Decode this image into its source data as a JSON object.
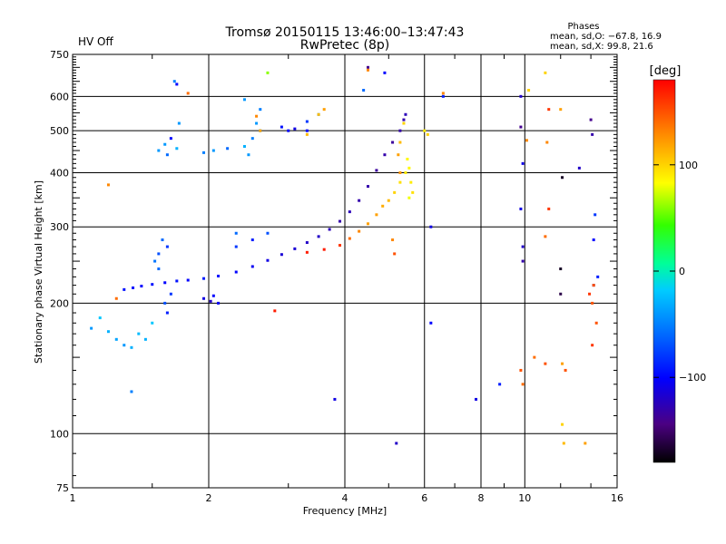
{
  "chart_data": {
    "type": "scatter",
    "title": "Tromsø 20150115 13:46:00–13:47:43",
    "subtitle": "RwPretec (8p)",
    "status_text": "HV Off",
    "status_color": "#cc0000",
    "phase_info": {
      "heading": "Phases",
      "line_o": "mean, sd,O: −67.8, 16.9",
      "line_x": "mean, sd,X:  99.8, 21.6"
    },
    "xlabel": "Frequency [MHz]",
    "ylabel": "Stationary phase Virtual Height [km]",
    "x_scale": "log",
    "y_scale": "log",
    "xlim": [
      1,
      16
    ],
    "ylim": [
      75,
      750
    ],
    "x_ticks": [
      1,
      2,
      4,
      6,
      8,
      10,
      16
    ],
    "x_tick_labels": [
      "1",
      "2",
      "4",
      "6",
      "8",
      "10",
      "16"
    ],
    "y_ticks": [
      75,
      100,
      200,
      300,
      400,
      500,
      600,
      750
    ],
    "y_tick_labels": [
      "75",
      "100",
      "200",
      "300",
      "400",
      "500",
      "600",
      "750"
    ],
    "grid": true,
    "colorbar": {
      "label": "[deg]",
      "range": [
        -180,
        180
      ],
      "ticks": [
        100,
        0,
        -100
      ],
      "tick_labels": [
        "100",
        "0",
        "−100"
      ]
    },
    "series": [
      {
        "mode": "O",
        "points": [
          [
            1.3,
            215,
            -95
          ],
          [
            1.36,
            217,
            -95
          ],
          [
            1.42,
            219,
            -100
          ],
          [
            1.5,
            221,
            -95
          ],
          [
            1.6,
            223,
            -100
          ],
          [
            1.7,
            225,
            -95
          ],
          [
            1.8,
            226,
            -100
          ],
          [
            1.95,
            228,
            -90
          ],
          [
            2.1,
            231,
            -95
          ],
          [
            2.3,
            236,
            -100
          ],
          [
            2.5,
            243,
            -105
          ],
          [
            2.7,
            251,
            -110
          ],
          [
            2.9,
            259,
            -115
          ],
          [
            3.1,
            267,
            -115
          ],
          [
            3.3,
            276,
            -120
          ],
          [
            3.5,
            285,
            -120
          ],
          [
            3.7,
            296,
            -125
          ],
          [
            3.9,
            309,
            -130
          ],
          [
            4.1,
            325,
            -125
          ],
          [
            4.3,
            345,
            -130
          ],
          [
            4.5,
            372,
            -130
          ],
          [
            4.7,
            405,
            -135
          ],
          [
            4.9,
            440,
            -130
          ],
          [
            5.1,
            470,
            -135
          ],
          [
            5.3,
            500,
            -130
          ],
          [
            5.4,
            530,
            -130
          ],
          [
            5.45,
            545,
            -125
          ],
          [
            1.55,
            240,
            -60
          ],
          [
            1.55,
            260,
            -70
          ],
          [
            1.58,
            280,
            -60
          ],
          [
            1.62,
            270,
            -80
          ],
          [
            1.52,
            250,
            -55
          ],
          [
            1.6,
            200,
            -70
          ],
          [
            1.62,
            190,
            -90
          ],
          [
            1.65,
            210,
            -80
          ],
          [
            1.55,
            450,
            -40
          ],
          [
            1.6,
            465,
            -40
          ],
          [
            1.62,
            440,
            -60
          ],
          [
            1.65,
            480,
            -100
          ],
          [
            1.7,
            455,
            -30
          ],
          [
            1.95,
            445,
            -50
          ],
          [
            2.05,
            450,
            -40
          ],
          [
            2.2,
            455,
            -60
          ],
          [
            2.4,
            460,
            -30
          ],
          [
            2.45,
            440,
            -40
          ],
          [
            2.5,
            480,
            -50
          ],
          [
            2.55,
            520,
            -40
          ],
          [
            2.6,
            500,
            -30
          ],
          [
            2.9,
            510,
            -95
          ],
          [
            3.0,
            500,
            -100
          ],
          [
            3.1,
            505,
            -110
          ],
          [
            3.3,
            525,
            -80
          ],
          [
            3.5,
            545,
            -40
          ],
          [
            3.3,
            500,
            -100
          ],
          [
            1.68,
            650,
            -50
          ],
          [
            1.7,
            640,
            -100
          ],
          [
            1.72,
            520,
            -40
          ],
          [
            2.4,
            590,
            -40
          ],
          [
            2.6,
            560,
            -50
          ],
          [
            4.4,
            620,
            -60
          ],
          [
            4.5,
            700,
            -140
          ],
          [
            4.9,
            680,
            -100
          ],
          [
            1.95,
            205,
            -110
          ],
          [
            2.02,
            202,
            -120
          ],
          [
            2.05,
            208,
            -100
          ],
          [
            2.1,
            200,
            -105
          ],
          [
            2.3,
            270,
            -80
          ],
          [
            2.5,
            280,
            -90
          ],
          [
            2.7,
            290,
            -70
          ],
          [
            2.3,
            290,
            -60
          ],
          [
            1.1,
            175,
            -40
          ],
          [
            1.15,
            185,
            -20
          ],
          [
            1.2,
            172,
            -30
          ],
          [
            1.25,
            165,
            -35
          ],
          [
            1.3,
            160,
            -40
          ],
          [
            1.35,
            158,
            -30
          ],
          [
            1.4,
            170,
            -25
          ],
          [
            1.5,
            180,
            -20
          ],
          [
            1.45,
            165,
            -30
          ],
          [
            1.35,
            125,
            -50
          ],
          [
            3.8,
            120,
            -110
          ],
          [
            5.2,
            95,
            -120
          ],
          [
            6.2,
            180,
            -100
          ],
          [
            6.2,
            300,
            -110
          ],
          [
            6.6,
            600,
            -90
          ],
          [
            7.8,
            120,
            -110
          ],
          [
            8.8,
            130,
            -90
          ],
          [
            9.8,
            600,
            -120
          ],
          [
            9.9,
            420,
            -110
          ],
          [
            9.8,
            330,
            -110
          ],
          [
            9.9,
            270,
            -120
          ],
          [
            9.9,
            250,
            -130
          ],
          [
            9.8,
            510,
            -140
          ],
          [
            12.0,
            240,
            -170
          ],
          [
            12.0,
            210,
            -160
          ],
          [
            12.1,
            390,
            -170
          ],
          [
            14.0,
            530,
            -140
          ],
          [
            14.3,
            320,
            -80
          ],
          [
            14.2,
            280,
            -100
          ],
          [
            14.5,
            230,
            -90
          ],
          [
            14.2,
            220,
            -120
          ],
          [
            14.1,
            490,
            -130
          ],
          [
            13.2,
            410,
            -120
          ]
        ]
      },
      {
        "mode": "X",
        "points": [
          [
            3.3,
            262,
            170
          ],
          [
            3.6,
            266,
            170
          ],
          [
            3.9,
            272,
            160
          ],
          [
            4.1,
            282,
            140
          ],
          [
            4.3,
            293,
            130
          ],
          [
            4.5,
            305,
            120
          ],
          [
            4.7,
            320,
            120
          ],
          [
            4.85,
            335,
            115
          ],
          [
            5.0,
            345,
            110
          ],
          [
            5.15,
            360,
            100
          ],
          [
            5.3,
            380,
            95
          ],
          [
            5.45,
            400,
            90
          ],
          [
            5.55,
            410,
            85
          ],
          [
            5.6,
            380,
            90
          ],
          [
            5.65,
            360,
            95
          ],
          [
            5.55,
            350,
            80
          ],
          [
            5.5,
            430,
            85
          ],
          [
            3.5,
            545,
            110
          ],
          [
            3.6,
            560,
            120
          ],
          [
            4.5,
            690,
            130
          ],
          [
            5.25,
            440,
            120
          ],
          [
            5.3,
            470,
            110
          ],
          [
            5.4,
            520,
            100
          ],
          [
            6.0,
            500,
            90
          ],
          [
            5.3,
            400,
            125
          ],
          [
            1.2,
            375,
            130
          ],
          [
            1.25,
            205,
            140
          ],
          [
            1.8,
            610,
            140
          ],
          [
            2.55,
            540,
            130
          ],
          [
            2.6,
            500,
            120
          ],
          [
            2.7,
            680,
            60
          ],
          [
            3.3,
            490,
            110
          ],
          [
            2.8,
            192,
            170
          ],
          [
            5.1,
            280,
            130
          ],
          [
            5.15,
            260,
            150
          ],
          [
            6.1,
            490,
            100
          ],
          [
            10.2,
            620,
            100
          ],
          [
            10.5,
            150,
            140
          ],
          [
            11.1,
            680,
            100
          ],
          [
            11.3,
            560,
            160
          ],
          [
            11.3,
            330,
            160
          ],
          [
            11.1,
            285,
            140
          ],
          [
            11.1,
            145,
            150
          ],
          [
            12.0,
            560,
            120
          ],
          [
            12.1,
            145,
            120
          ],
          [
            12.2,
            95,
            110
          ],
          [
            12.1,
            105,
            100
          ],
          [
            12.3,
            140,
            150
          ],
          [
            13.6,
            95,
            120
          ],
          [
            14.1,
            160,
            160
          ],
          [
            14.1,
            200,
            150
          ],
          [
            14.2,
            220,
            150
          ],
          [
            14.4,
            180,
            150
          ],
          [
            13.9,
            210,
            160
          ],
          [
            9.9,
            130,
            140
          ],
          [
            9.8,
            140,
            150
          ],
          [
            10.1,
            475,
            130
          ],
          [
            6.6,
            610,
            130
          ],
          [
            11.2,
            470,
            130
          ]
        ]
      }
    ]
  }
}
